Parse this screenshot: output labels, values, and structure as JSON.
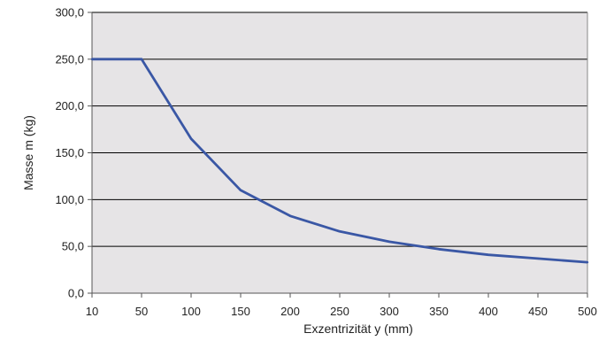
{
  "chart_data": {
    "type": "line",
    "xlabel": "Exzentrizität y (mm)",
    "ylabel": "Masse m (kg)",
    "x_tick_labels": [
      "10",
      "50",
      "100",
      "150",
      "200",
      "250",
      "300",
      "350",
      "400",
      "450",
      "500"
    ],
    "x_tick_values": [
      10,
      50,
      100,
      150,
      200,
      250,
      300,
      350,
      400,
      450,
      500
    ],
    "xlim": [
      10,
      500
    ],
    "y_tick_labels": [
      "0,0",
      "50,0",
      "100,0",
      "150,0",
      "200,0",
      "250,0",
      "300,0"
    ],
    "y_tick_values": [
      0,
      50,
      100,
      150,
      200,
      250,
      300
    ],
    "ylim": [
      0,
      300
    ],
    "grid": "horizontal",
    "legend": "none",
    "series": [
      {
        "color": "#3a57a5",
        "x": [
          10,
          50,
          100,
          150,
          200,
          250,
          300,
          350,
          400,
          450,
          500
        ],
        "y": [
          250,
          250,
          165,
          110,
          82.5,
          66,
          55,
          47,
          41,
          37,
          33
        ]
      }
    ],
    "plot_background": "#e6e4e6",
    "grid_color": "#000000"
  }
}
